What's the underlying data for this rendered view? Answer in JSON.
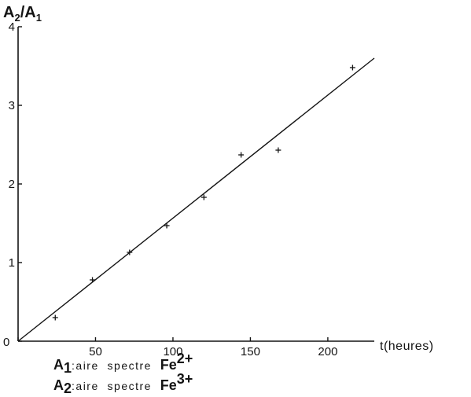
{
  "chart_data": {
    "type": "scatter",
    "ylabel": {
      "main": "A",
      "sub1": "2",
      "sep": "/A",
      "sub2": "1"
    },
    "xlabel": "t(heures)",
    "origin_label": "0",
    "xlim": [
      0,
      230
    ],
    "ylim": [
      0,
      4
    ],
    "xticks": [
      0,
      50,
      100,
      150,
      200
    ],
    "xtick_labels": [
      "",
      "50",
      "100",
      "150",
      "200"
    ],
    "yticks": [
      0,
      1,
      2,
      3,
      4
    ],
    "ytick_labels": [
      "",
      "1",
      "2",
      "3",
      "4"
    ],
    "grid": false,
    "series": [
      {
        "marker": "+",
        "points": [
          {
            "x": 24,
            "y": 0.3
          },
          {
            "x": 48,
            "y": 0.78
          },
          {
            "x": 72,
            "y": 1.13
          },
          {
            "x": 96,
            "y": 1.47
          },
          {
            "x": 120,
            "y": 1.83
          },
          {
            "x": 144,
            "y": 2.37
          },
          {
            "x": 168,
            "y": 2.43
          },
          {
            "x": 216,
            "y": 3.48
          }
        ]
      }
    ],
    "fit_line": {
      "x": [
        0,
        230
      ],
      "y": [
        0,
        3.6
      ]
    },
    "legend": [
      {
        "symbol": "A",
        "sub": "1",
        "text": ":aire  spectre  ",
        "species": "Fe",
        "charge": "2+"
      },
      {
        "symbol": "A",
        "sub": "2",
        "text": ":aire  spectre  ",
        "species": "Fe",
        "charge": "3+"
      }
    ]
  }
}
